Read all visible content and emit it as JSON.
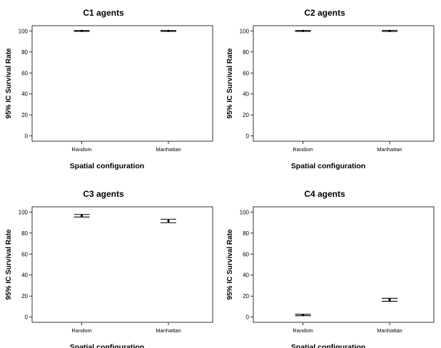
{
  "chart_data": [
    {
      "type": "errorbar",
      "title": "C1 agents",
      "xlabel": "Spatial configuration",
      "ylabel": "95% IC Survival Rate",
      "categories": [
        "Random",
        "Manhattan"
      ],
      "yticks": [
        0,
        20,
        40,
        60,
        80,
        100
      ],
      "ylim": [
        -5,
        105
      ],
      "series": [
        {
          "means": [
            100,
            100
          ],
          "lower": [
            99.6,
            99.6
          ],
          "upper": [
            100.4,
            100.4
          ]
        }
      ]
    },
    {
      "type": "errorbar",
      "title": "C2 agents",
      "xlabel": "Spatial configuration",
      "ylabel": "95% IC Survival Rate",
      "categories": [
        "Random",
        "Manhattan"
      ],
      "yticks": [
        0,
        20,
        40,
        60,
        80,
        100
      ],
      "ylim": [
        -5,
        105
      ],
      "series": [
        {
          "means": [
            100,
            100
          ],
          "lower": [
            99.6,
            99.5
          ],
          "upper": [
            100.4,
            100.5
          ]
        }
      ]
    },
    {
      "type": "errorbar",
      "title": "C3 agents",
      "xlabel": "Spatial configuration",
      "ylabel": "95% IC Survival Rate",
      "categories": [
        "Random",
        "Manhattan"
      ],
      "yticks": [
        0,
        20,
        40,
        60,
        80,
        100
      ],
      "ylim": [
        -5,
        105
      ],
      "series": [
        {
          "means": [
            96.5,
            91.5
          ],
          "lower": [
            95.3,
            89.8
          ],
          "upper": [
            97.7,
            93.2
          ]
        }
      ]
    },
    {
      "type": "errorbar",
      "title": "C4 agents",
      "xlabel": "Spatial configuration",
      "ylabel": "95% IC Survival Rate",
      "categories": [
        "Random",
        "Manhattan"
      ],
      "yticks": [
        0,
        20,
        40,
        60,
        80,
        100
      ],
      "ylim": [
        -5,
        105
      ],
      "series": [
        {
          "means": [
            2,
            16.5
          ],
          "lower": [
            1.3,
            15.1
          ],
          "upper": [
            2.7,
            17.9
          ]
        }
      ]
    }
  ]
}
